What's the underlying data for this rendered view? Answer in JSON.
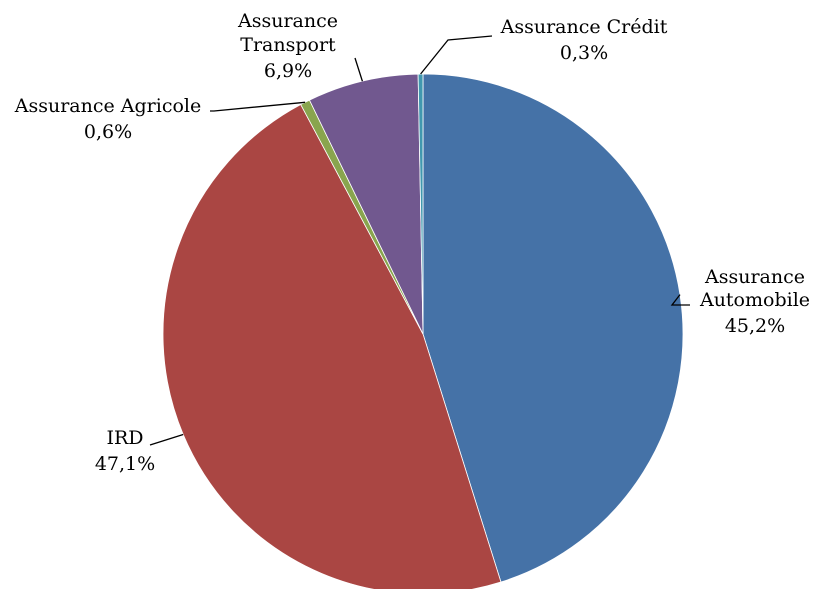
{
  "chart_data": {
    "type": "pie",
    "title": "",
    "start_angle_deg": 0,
    "direction": "clockwise",
    "slices": [
      {
        "name": "Assurance Automobile",
        "value": 45.2,
        "label": "45,2%",
        "color": "#4572A7"
      },
      {
        "name": "IRD",
        "value": 47.1,
        "label": "47,1%",
        "color": "#AA4643"
      },
      {
        "name": "Assurance Agricole",
        "value": 0.6,
        "label": "0,6%",
        "color": "#89A54E"
      },
      {
        "name": "Assurance Transport",
        "value": 6.9,
        "label": "6,9%",
        "color": "#71588F"
      },
      {
        "name": "Assurance Crédit",
        "value": 0.3,
        "label": "0,3%",
        "color": "#4198AF"
      }
    ],
    "legend": "none",
    "labels": "outside with leader lines"
  }
}
